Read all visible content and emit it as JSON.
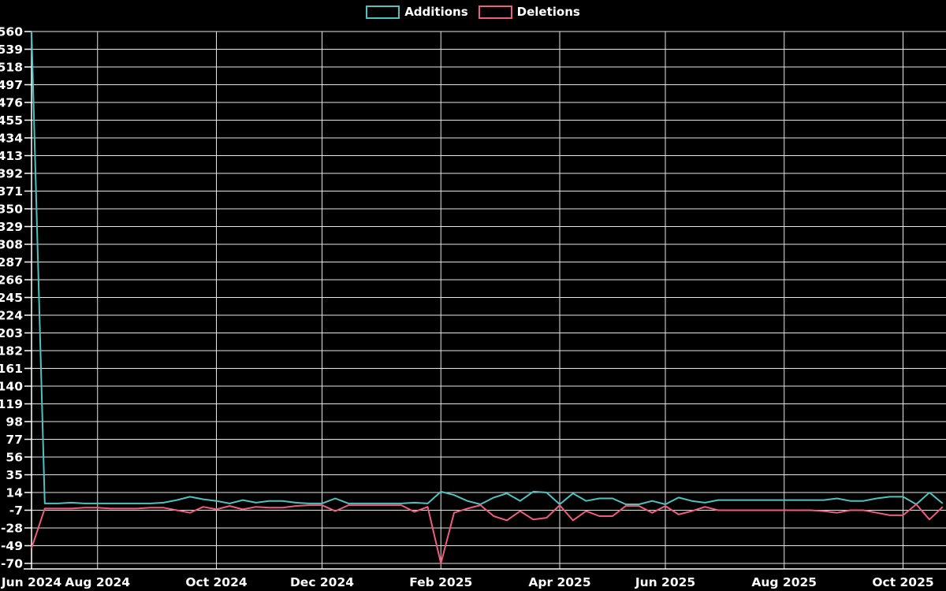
{
  "chart_data": {
    "type": "line",
    "title": "",
    "background_color": "#000000",
    "grid": true,
    "grid_color": "#e6e6e6",
    "axis_color": "#ffffff",
    "text_color": "#ffffff",
    "legend_position": "top-center",
    "x_unit": "week_index",
    "ylim": [
      -70,
      560
    ],
    "y_ticks": [
      560,
      539,
      518,
      497,
      476,
      455,
      434,
      413,
      392,
      371,
      350,
      329,
      308,
      287,
      266,
      245,
      224,
      203,
      182,
      161,
      140,
      119,
      98,
      77,
      56,
      35,
      14,
      -7,
      -28,
      -49,
      -70
    ],
    "x_ticks": [
      {
        "label": "Jun 2024",
        "week": 0
      },
      {
        "label": "Aug 2024",
        "week": 5
      },
      {
        "label": "Oct 2024",
        "week": 14
      },
      {
        "label": "Dec 2024",
        "week": 22
      },
      {
        "label": "Feb 2025",
        "week": 31
      },
      {
        "label": "Apr 2025",
        "week": 40
      },
      {
        "label": "Jun 2025",
        "week": 48
      },
      {
        "label": "Aug 2025",
        "week": 57
      },
      {
        "label": "Oct 2025",
        "week": 66
      }
    ],
    "series": [
      {
        "name": "Additions",
        "color": "#4dc3c1",
        "values": [
          560,
          1,
          1,
          2,
          1,
          1,
          1,
          1,
          1,
          1,
          2,
          5,
          9,
          6,
          4,
          1,
          5,
          2,
          4,
          4,
          2,
          1,
          1,
          7,
          1,
          1,
          1,
          1,
          1,
          2,
          1,
          15,
          11,
          4,
          0,
          8,
          13,
          4,
          15,
          14,
          0,
          13,
          4,
          7,
          7,
          0,
          0,
          4,
          0,
          8,
          4,
          2,
          5,
          5,
          5,
          5,
          5,
          5,
          5,
          5,
          5,
          7,
          4,
          4,
          7,
          9,
          9,
          0,
          14,
          1
        ]
      },
      {
        "name": "Deletions",
        "color": "#f05c7e",
        "values": [
          -52,
          -5,
          -5,
          -5,
          -4,
          -4,
          -5,
          -5,
          -5,
          -4,
          -4,
          -7,
          -10,
          -3,
          -6,
          -2,
          -6,
          -3,
          -4,
          -4,
          -2,
          -1,
          -1,
          -8,
          -1,
          -1,
          -1,
          -1,
          -1,
          -9,
          -3,
          -70,
          -10,
          -5,
          -1,
          -14,
          -19,
          -8,
          -18,
          -16,
          -1,
          -19,
          -8,
          -14,
          -14,
          -2,
          -2,
          -10,
          -2,
          -12,
          -8,
          -3,
          -7,
          -7,
          -7,
          -7,
          -7,
          -7,
          -7,
          -7,
          -8,
          -10,
          -7,
          -7,
          -10,
          -13,
          -13,
          0,
          -18,
          -3
        ]
      }
    ]
  }
}
